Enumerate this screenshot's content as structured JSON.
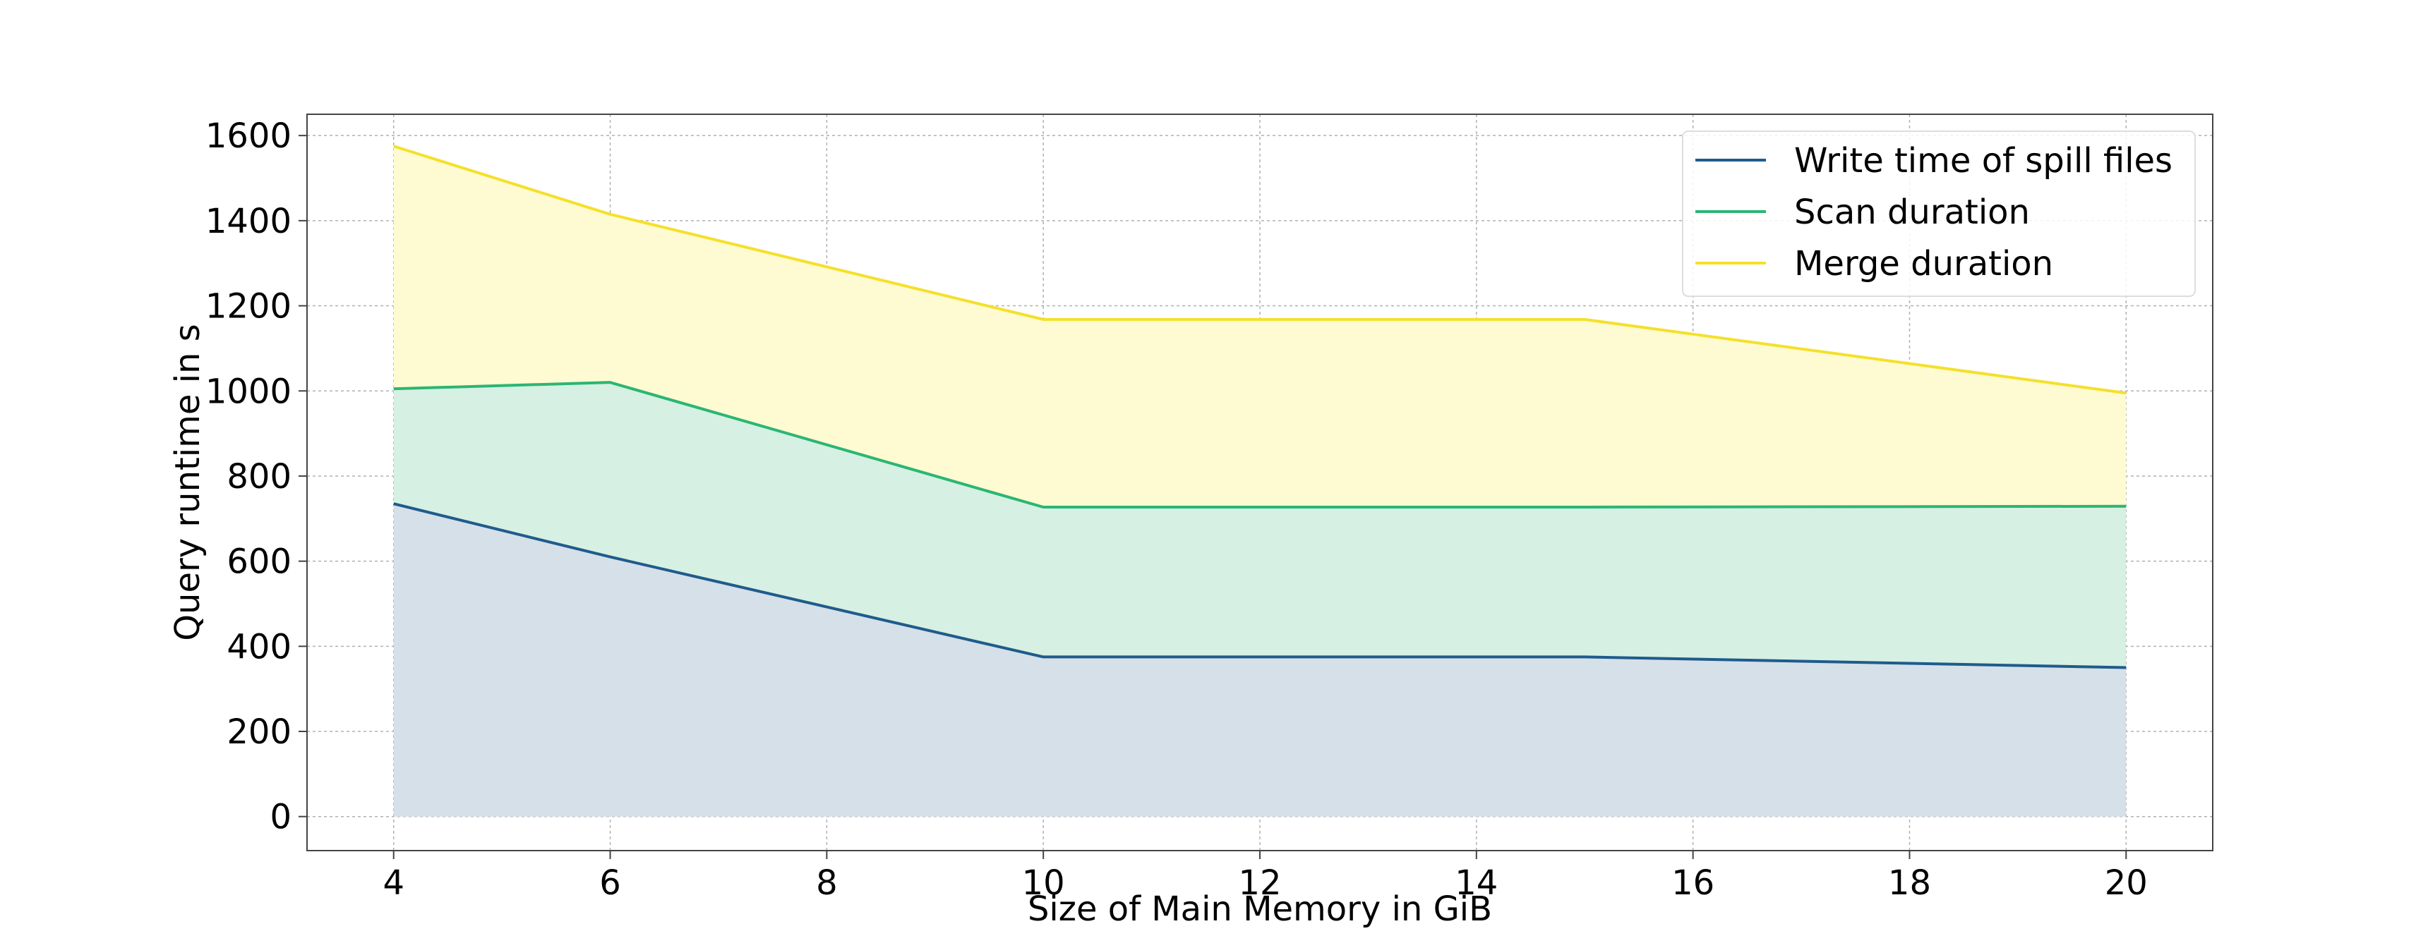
{
  "chart_data": {
    "type": "area",
    "stacked": true,
    "title": "",
    "xlabel": "Size of Main Memory in GiB",
    "ylabel": "Query runtime in s",
    "xlim": [
      3.2,
      20.8
    ],
    "ylim": [
      -80,
      1650
    ],
    "xticks": [
      4,
      6,
      8,
      10,
      12,
      14,
      16,
      18,
      20
    ],
    "yticks": [
      0,
      200,
      400,
      600,
      800,
      1000,
      1200,
      1400,
      1600
    ],
    "grid": true,
    "legend_position": "top-right",
    "x": [
      4,
      6,
      10,
      15,
      20
    ],
    "series": [
      {
        "name": "Write time of spill files",
        "color": "#1f5b8c",
        "fill": "#d6e0e8",
        "values": [
          735,
          610,
          375,
          375,
          350
        ],
        "cumulative": [
          735,
          610,
          375,
          375,
          350
        ]
      },
      {
        "name": "Scan duration",
        "color": "#2bb673",
        "fill": "#d6f0e3",
        "values": [
          270,
          410,
          352,
          352,
          379
        ],
        "cumulative": [
          1005,
          1020,
          727,
          727,
          729
        ]
      },
      {
        "name": "Merge duration",
        "color": "#f5e02a",
        "fill": "#fefad2",
        "values": [
          570,
          395,
          441,
          441,
          266
        ],
        "cumulative": [
          1575,
          1415,
          1168,
          1168,
          995
        ]
      }
    ]
  }
}
